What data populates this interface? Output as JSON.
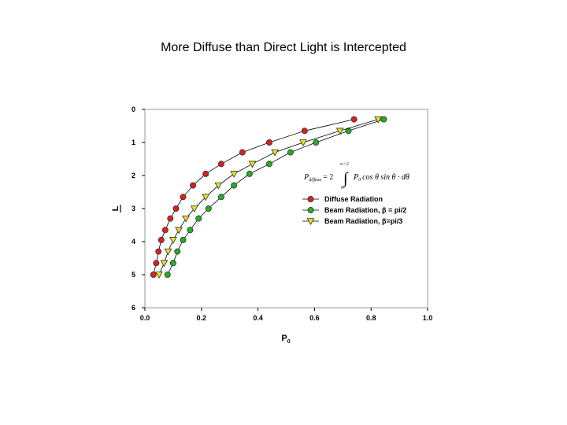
{
  "page": {
    "title": "More Diffuse than Direct Light is Intercepted"
  },
  "formula": {
    "lhs": "P",
    "lhs_sub": "diffuse",
    "equals": "= 2",
    "upper_limit": "π / 2",
    "lower_limit": "0",
    "integrand": "P",
    "integrand_sub": "0",
    "rest": "cos θ sin θ · dθ"
  },
  "chart_data": {
    "type": "scatter",
    "title": "",
    "xlabel": "P",
    "xlabel_sub": "0",
    "ylabel": "L",
    "ylabel_overline": true,
    "xlim": [
      0.0,
      1.0
    ],
    "ylim": [
      0,
      6
    ],
    "y_inverted": true,
    "x_ticks": [
      "0.0",
      "0.2",
      "0.4",
      "0.6",
      "0.8",
      "1.0"
    ],
    "y_ticks": [
      "0",
      "1",
      "2",
      "3",
      "4",
      "5",
      "6"
    ],
    "grid": false,
    "legend_position": "right-middle",
    "series": [
      {
        "name": "Diffuse Radiation",
        "marker": "circle",
        "color": "#d92020",
        "x": [
          0.74,
          0.565,
          0.44,
          0.345,
          0.27,
          0.215,
          0.17,
          0.135,
          0.11,
          0.09,
          0.072,
          0.058,
          0.048,
          0.04,
          0.03
        ],
        "y": [
          0.3,
          0.65,
          1.0,
          1.3,
          1.65,
          1.95,
          2.3,
          2.65,
          3.0,
          3.3,
          3.65,
          3.95,
          4.3,
          4.65,
          5.0
        ]
      },
      {
        "name": "Beam Radiation, β = pi/2",
        "marker": "circle",
        "color": "#22b022",
        "x": [
          0.845,
          0.72,
          0.605,
          0.515,
          0.44,
          0.37,
          0.315,
          0.27,
          0.225,
          0.19,
          0.16,
          0.135,
          0.115,
          0.1,
          0.08
        ],
        "y": [
          0.3,
          0.65,
          1.0,
          1.3,
          1.65,
          1.95,
          2.3,
          2.65,
          3.0,
          3.3,
          3.65,
          3.95,
          4.3,
          4.65,
          5.0
        ]
      },
      {
        "name": "Beam Radiation, β=pi/3",
        "marker": "triangle-down",
        "color": "#e8e020",
        "x": [
          0.825,
          0.69,
          0.56,
          0.46,
          0.38,
          0.315,
          0.26,
          0.215,
          0.175,
          0.145,
          0.12,
          0.1,
          0.082,
          0.068,
          0.05
        ],
        "y": [
          0.3,
          0.65,
          1.0,
          1.3,
          1.65,
          1.95,
          2.3,
          2.65,
          3.0,
          3.3,
          3.65,
          3.95,
          4.3,
          4.65,
          5.0
        ]
      }
    ]
  }
}
